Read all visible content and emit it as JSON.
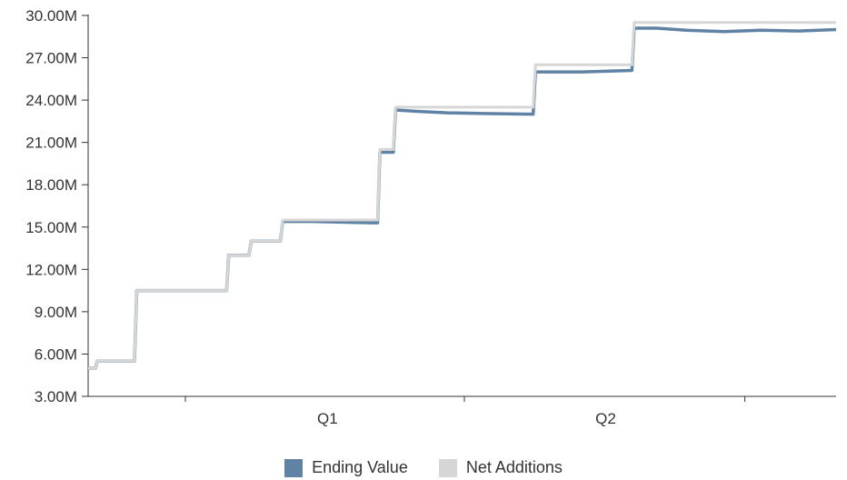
{
  "chart_data": {
    "type": "line",
    "title": "",
    "xlabel": "",
    "ylabel": "",
    "x_categories": [
      "Q1",
      "Q2"
    ],
    "y_ticks": [
      "3.00M",
      "6.00M",
      "9.00M",
      "12.00M",
      "15.00M",
      "18.00M",
      "21.00M",
      "24.00M",
      "27.00M",
      "30.00M"
    ],
    "ylim": [
      3000000,
      30000000
    ],
    "grid": false,
    "legend_position": "bottom",
    "colors": {
      "ending_value": "#5f82a5",
      "net_additions": "#d6d6d6",
      "axis": "#333333"
    },
    "series": [
      {
        "name": "Ending Value",
        "color": "#5f82a5",
        "points": [
          [
            0.0,
            5.0
          ],
          [
            0.01,
            5.0
          ],
          [
            0.012,
            5.5
          ],
          [
            0.062,
            5.5
          ],
          [
            0.065,
            10.5
          ],
          [
            0.185,
            10.5
          ],
          [
            0.188,
            13.0
          ],
          [
            0.215,
            13.0
          ],
          [
            0.218,
            14.0
          ],
          [
            0.257,
            14.0
          ],
          [
            0.26,
            15.4
          ],
          [
            0.3,
            15.4
          ],
          [
            0.38,
            15.3
          ],
          [
            0.387,
            15.3
          ],
          [
            0.39,
            20.3
          ],
          [
            0.408,
            20.3
          ],
          [
            0.411,
            23.3
          ],
          [
            0.44,
            23.2
          ],
          [
            0.48,
            23.1
          ],
          [
            0.53,
            23.05
          ],
          [
            0.595,
            23.0
          ],
          [
            0.598,
            26.0
          ],
          [
            0.66,
            26.0
          ],
          [
            0.727,
            26.1
          ],
          [
            0.73,
            29.1
          ],
          [
            0.76,
            29.1
          ],
          [
            0.8,
            28.95
          ],
          [
            0.85,
            28.85
          ],
          [
            0.9,
            28.95
          ],
          [
            0.95,
            28.9
          ],
          [
            1.0,
            29.0
          ]
        ]
      },
      {
        "name": "Net Additions",
        "color": "#d6d6d6",
        "points": [
          [
            0.0,
            5.0
          ],
          [
            0.01,
            5.0
          ],
          [
            0.012,
            5.5
          ],
          [
            0.062,
            5.5
          ],
          [
            0.065,
            10.5
          ],
          [
            0.185,
            10.5
          ],
          [
            0.188,
            13.0
          ],
          [
            0.215,
            13.0
          ],
          [
            0.218,
            14.0
          ],
          [
            0.257,
            14.0
          ],
          [
            0.26,
            15.5
          ],
          [
            0.387,
            15.5
          ],
          [
            0.39,
            20.5
          ],
          [
            0.408,
            20.5
          ],
          [
            0.411,
            23.5
          ],
          [
            0.595,
            23.5
          ],
          [
            0.598,
            26.5
          ],
          [
            0.727,
            26.5
          ],
          [
            0.73,
            29.5
          ],
          [
            1.0,
            29.5
          ]
        ]
      }
    ]
  }
}
